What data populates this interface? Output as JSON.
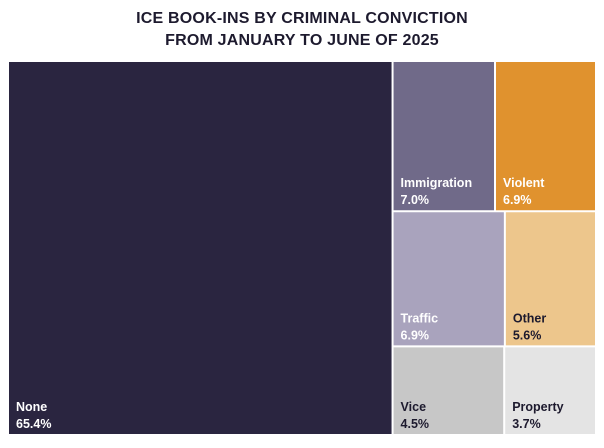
{
  "chart_data": {
    "type": "treemap",
    "title_lines": [
      "ICE BOOK-INS BY CRIMINAL CONVICTION",
      "FROM JANUARY TO JUNE OF 2025"
    ],
    "items": [
      {
        "name": "None",
        "value": 65.4,
        "label": "65.4%",
        "color": "#2a2540",
        "text_color": "#ffffff"
      },
      {
        "name": "Immigration",
        "value": 7.0,
        "label": "7.0%",
        "color": "#706a89",
        "text_color": "#ffffff"
      },
      {
        "name": "Violent",
        "value": 6.9,
        "label": "6.9%",
        "color": "#e0922e",
        "text_color": "#ffffff"
      },
      {
        "name": "Traffic",
        "value": 6.9,
        "label": "6.9%",
        "color": "#a9a3bd",
        "text_color": "#ffffff"
      },
      {
        "name": "Other",
        "value": 5.6,
        "label": "5.6%",
        "color": "#edc68c",
        "text_color": "#1d1a2e"
      },
      {
        "name": "Vice",
        "value": 4.5,
        "label": "4.5%",
        "color": "#c7c7c7",
        "text_color": "#1d1a2e"
      },
      {
        "name": "Property",
        "value": 3.7,
        "label": "3.7%",
        "color": "#e4e4e4",
        "text_color": "#1d1a2e"
      }
    ]
  }
}
